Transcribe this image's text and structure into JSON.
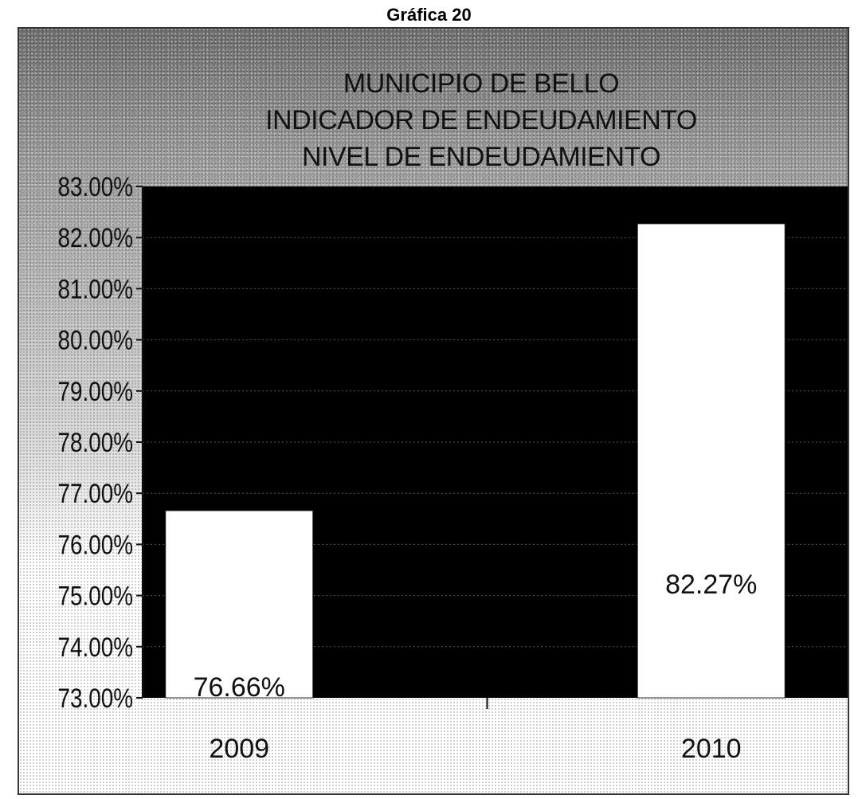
{
  "page": {
    "heading": "Gráfica 20"
  },
  "chart_data": {
    "type": "bar",
    "title_lines": [
      "MUNICIPIO DE BELLO",
      "INDICADOR DE ENDEUDAMIENTO",
      "NIVEL DE ENDEUDAMIENTO"
    ],
    "categories": [
      "2009",
      "2010"
    ],
    "values": [
      76.66,
      82.27
    ],
    "value_labels": [
      "76.66%",
      "82.27%"
    ],
    "yticks": [
      "73.00%",
      "74.00%",
      "75.00%",
      "76.00%",
      "77.00%",
      "78.00%",
      "79.00%",
      "80.00%",
      "81.00%",
      "82.00%",
      "83.00%"
    ],
    "ylim": [
      73,
      83
    ],
    "xlabel": "",
    "ylabel": "",
    "grid": true,
    "colors": {
      "plot_background": "#000000",
      "bars": "#ffffff",
      "gridlines": "#555555"
    }
  }
}
